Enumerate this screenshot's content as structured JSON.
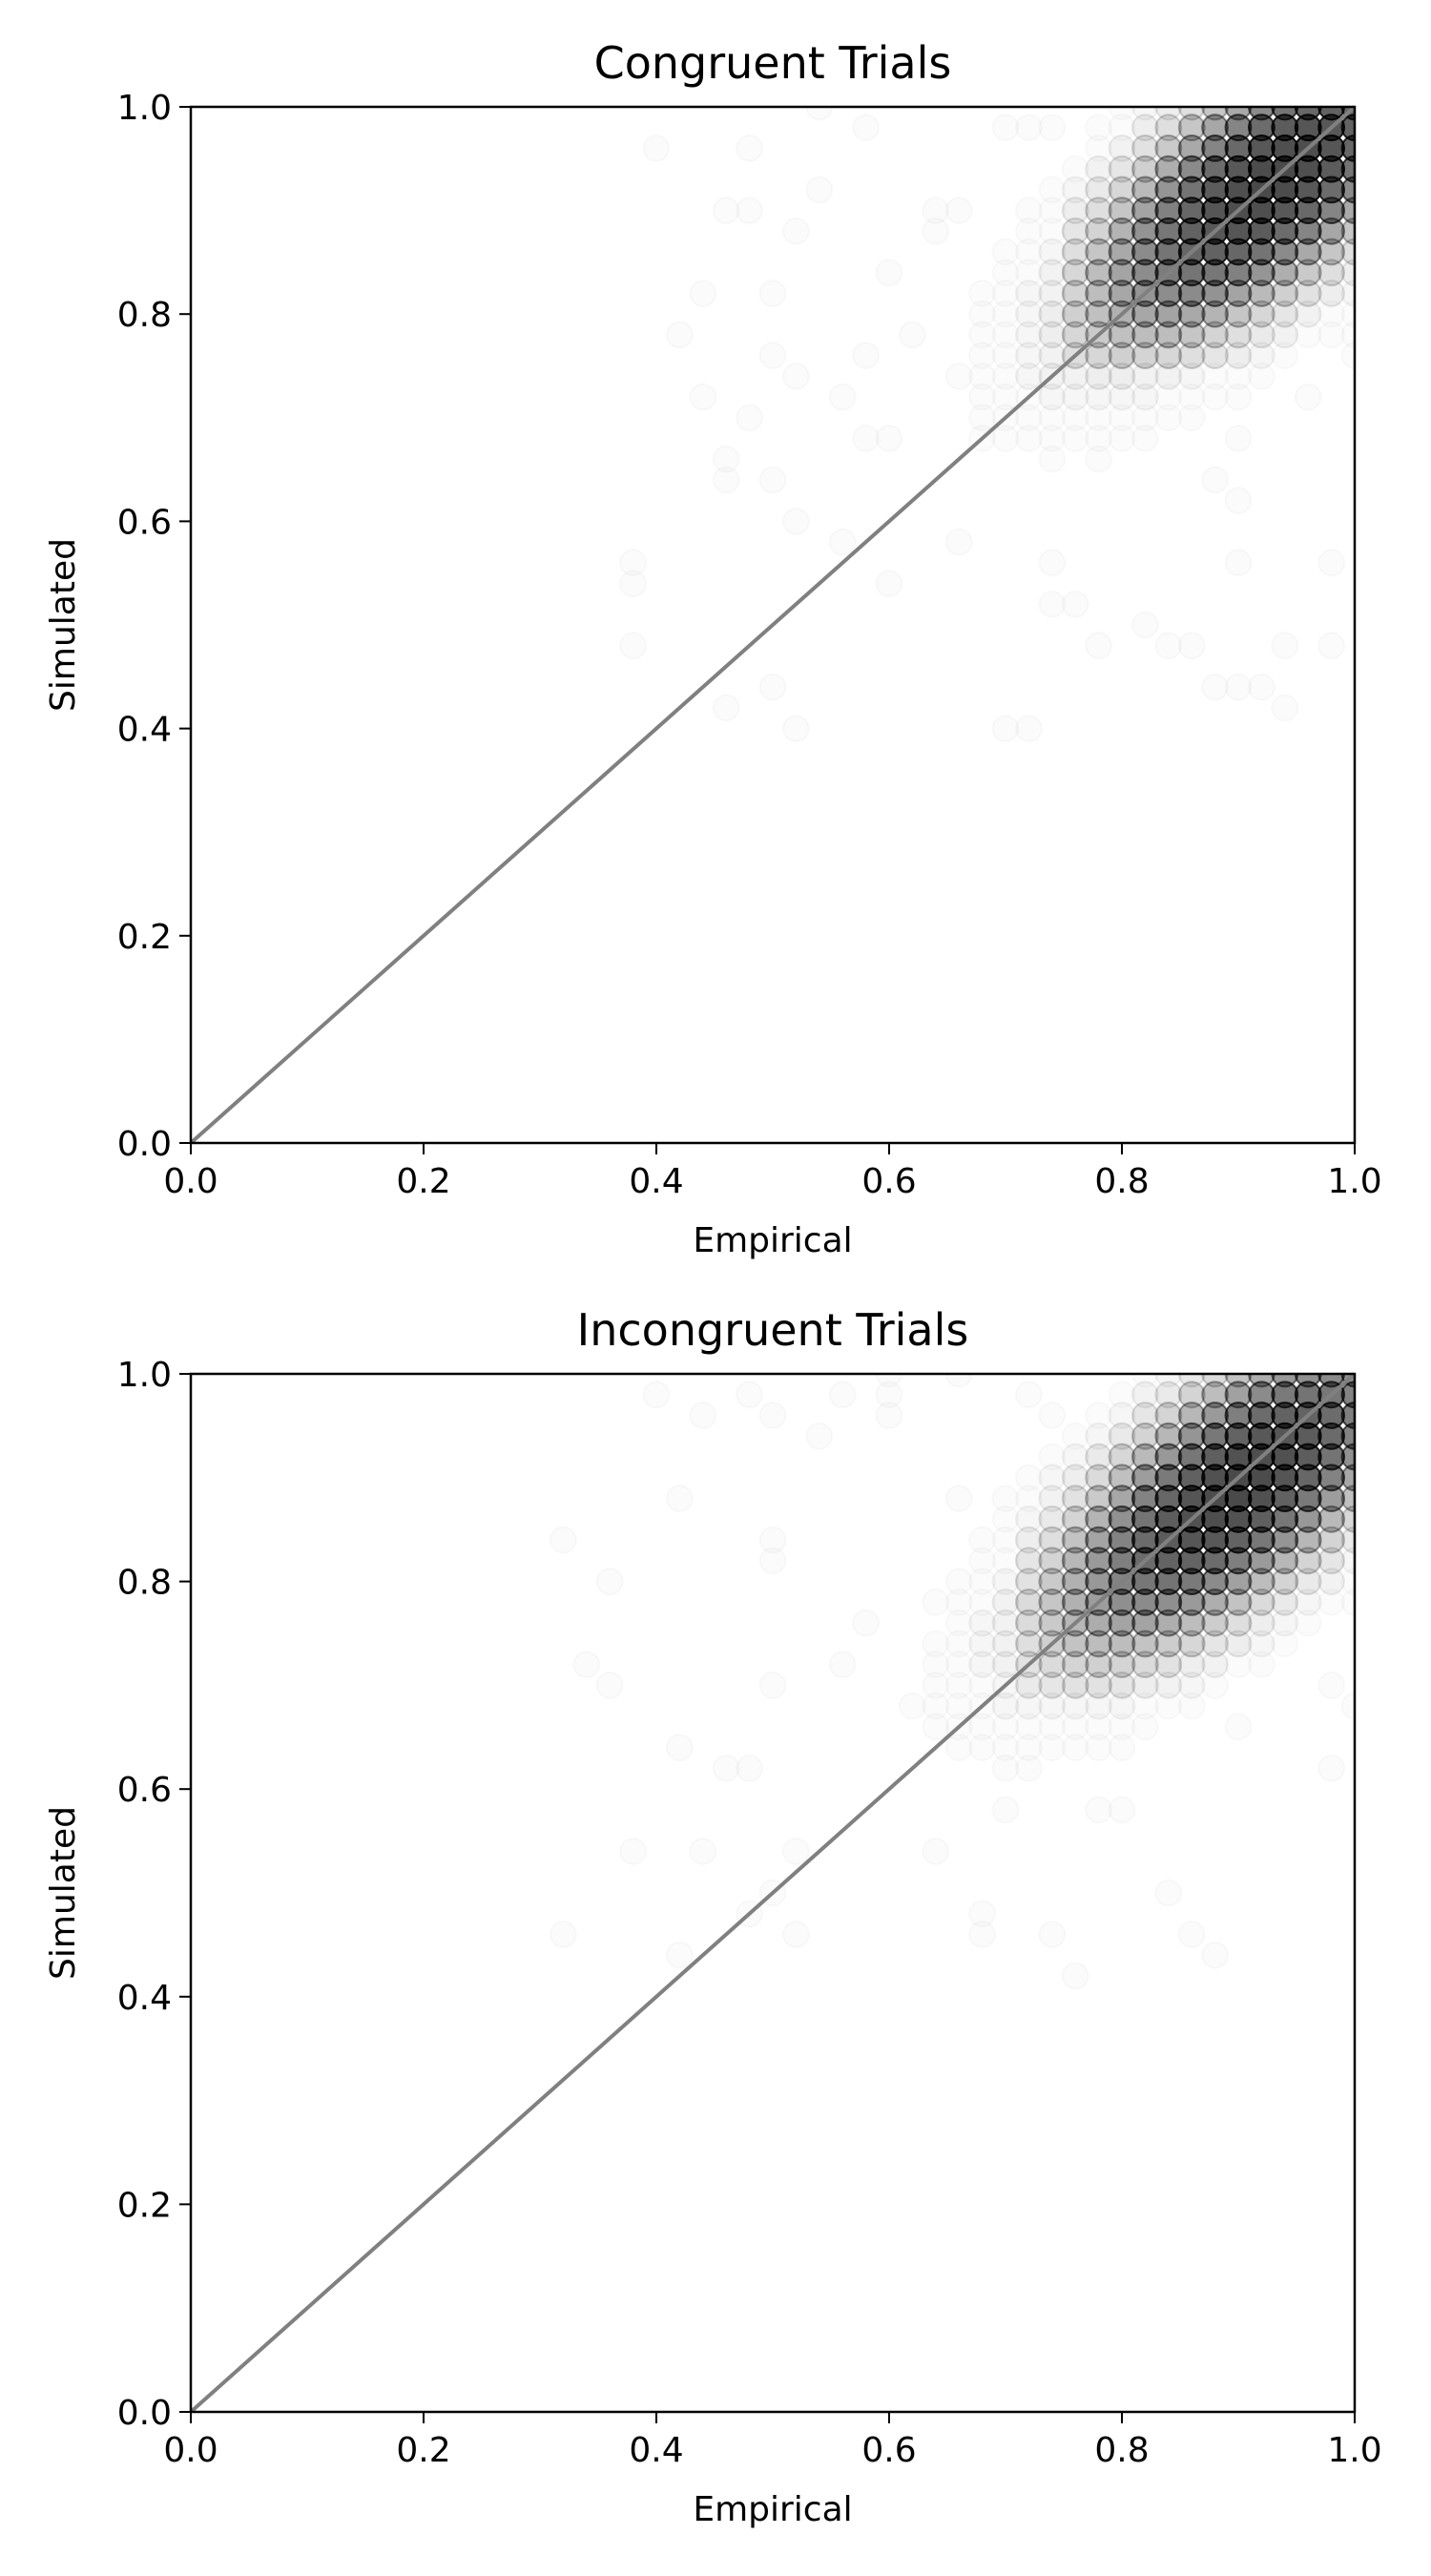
{
  "chart_data": [
    {
      "type": "scatter",
      "title": "Congruent Trials",
      "xlabel": "Empirical",
      "ylabel": "Simulated",
      "xlim": [
        0,
        1
      ],
      "ylim": [
        0,
        1
      ],
      "grid": false,
      "xticks": [
        "0.0",
        "0.2",
        "0.4",
        "0.6",
        "0.8",
        "1.0"
      ],
      "yticks": [
        "0.0",
        "0.2",
        "0.4",
        "0.6",
        "0.8",
        "1.0"
      ],
      "reference_line": {
        "x": [
          0,
          1
        ],
        "y": [
          0,
          1
        ],
        "color": "#808080"
      },
      "point_color": "#000000",
      "point_alpha": 0.02,
      "marker": "open-circle",
      "grid_step": 0.02,
      "density": {
        "cloud": {
          "x_range": [
            0.38,
            1.0
          ],
          "y_range": [
            0.4,
            1.0
          ]
        },
        "dense_core": {
          "x_range": [
            0.76,
            1.0
          ],
          "y_range": [
            0.76,
            1.0
          ]
        },
        "center": [
          0.93,
          0.93
        ]
      }
    },
    {
      "type": "scatter",
      "title": "Incongruent Trials",
      "xlabel": "Empirical",
      "ylabel": "Simulated",
      "xlim": [
        0,
        1
      ],
      "ylim": [
        0,
        1
      ],
      "grid": false,
      "xticks": [
        "0.0",
        "0.2",
        "0.4",
        "0.6",
        "0.8",
        "1.0"
      ],
      "yticks": [
        "0.0",
        "0.2",
        "0.4",
        "0.6",
        "0.8",
        "1.0"
      ],
      "reference_line": {
        "x": [
          0,
          1
        ],
        "y": [
          0,
          1
        ],
        "color": "#808080"
      },
      "point_color": "#000000",
      "point_alpha": 0.02,
      "marker": "open-circle",
      "grid_step": 0.02,
      "density": {
        "cloud": {
          "x_range": [
            0.32,
            1.0
          ],
          "y_range": [
            0.42,
            1.0
          ]
        },
        "dense_core": {
          "x_range": [
            0.72,
            1.0
          ],
          "y_range": [
            0.7,
            1.0
          ]
        },
        "center": [
          0.9,
          0.89
        ]
      }
    }
  ]
}
